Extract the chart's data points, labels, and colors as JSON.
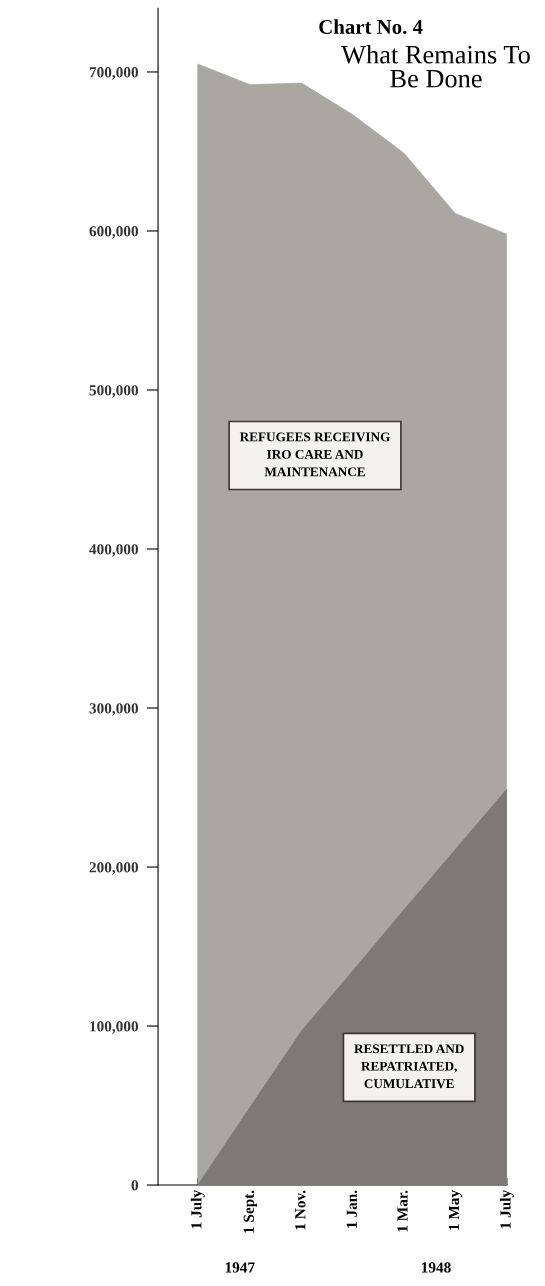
{
  "chart_data": {
    "type": "area",
    "title": "Chart No. 4",
    "subtitle": "What Remains To Be Done",
    "x": [
      "1947-07-01",
      "1947-09-01",
      "1947-11-01",
      "1948-01-01",
      "1948-03-01",
      "1948-05-01",
      "1948-07-01"
    ],
    "series": [
      {
        "name": "REFUGEES RECEIVING IRO CARE AND MAINTENANCE",
        "color": "#aaa6a2",
        "values": [
          705000,
          692000,
          693000,
          673000,
          649000,
          611000,
          598000
        ]
      },
      {
        "name": "RESETTLED AND REPATRIATED, CUMULATIVE",
        "color": "#7d7976",
        "values": [
          0,
          49000,
          97000,
          135000,
          173000,
          211000,
          249000
        ]
      }
    ],
    "xlim": [
      "1947-05-15",
      "1948-07-01"
    ],
    "xticks": [
      {
        "value": "1947-07-01",
        "label": "1 July"
      },
      {
        "value": "1947-09-01",
        "label": "1 Sept."
      },
      {
        "value": "1947-11-01",
        "label": "1 Nov."
      },
      {
        "value": "1948-01-01",
        "label": "1 Jan."
      },
      {
        "value": "1948-03-01",
        "label": "1 Mar."
      },
      {
        "value": "1948-05-01",
        "label": "1 May"
      },
      {
        "value": "1948-07-01",
        "label": "1 July"
      }
    ],
    "ylim": [
      0,
      740000
    ],
    "yticks": [
      {
        "value": 0,
        "label": "0"
      },
      {
        "value": 100000,
        "label": "100,000"
      },
      {
        "value": 200000,
        "label": "200,000"
      },
      {
        "value": 300000,
        "label": "300,000"
      },
      {
        "value": 400000,
        "label": "400,000"
      },
      {
        "value": 500000,
        "label": "500,000"
      },
      {
        "value": 600000,
        "label": "600,000"
      },
      {
        "value": 700000,
        "label": "700,000"
      }
    ],
    "annotations": [
      "1947",
      "1948"
    ],
    "grid": false,
    "legend": false
  }
}
